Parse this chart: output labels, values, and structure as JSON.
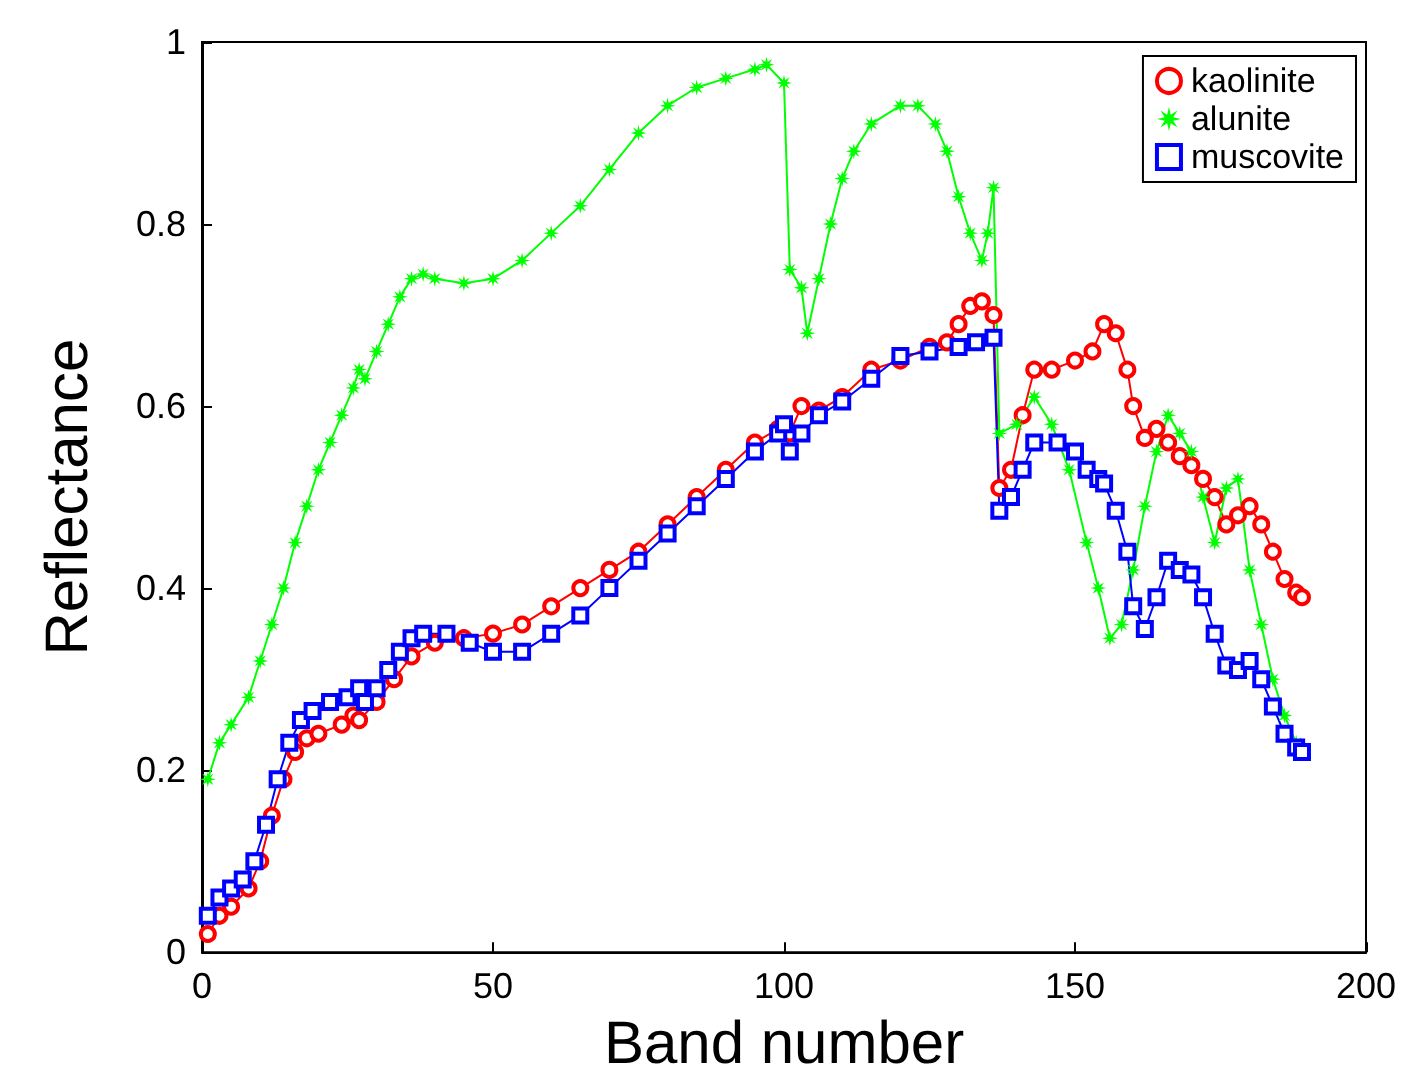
{
  "chart_data": {
    "type": "line",
    "xlabel": "Band number",
    "ylabel": "Reflectance",
    "xlim": [
      0,
      200
    ],
    "xticks": [
      0,
      50,
      100,
      150,
      200
    ],
    "ylim": [
      0,
      1
    ],
    "yticks": [
      0,
      0.2,
      0.4,
      0.6,
      0.8,
      1
    ],
    "grid": false,
    "legend": "top right",
    "line_style": "solid",
    "series": [
      {
        "name": "kaolinite",
        "color": "#ff0000",
        "marker": "circle",
        "x": [
          1,
          3,
          5,
          8,
          10,
          12,
          14,
          16,
          18,
          20,
          24,
          26,
          27,
          30,
          33,
          36,
          40,
          45,
          50,
          55,
          60,
          65,
          70,
          75,
          80,
          85,
          90,
          95,
          99,
          101,
          103,
          106,
          110,
          115,
          120,
          125,
          128,
          130,
          132,
          134,
          136,
          137,
          139,
          141,
          143,
          146,
          150,
          153,
          155,
          157,
          159,
          160,
          162,
          164,
          166,
          168,
          170,
          172,
          174,
          176,
          178,
          180,
          182,
          184,
          186,
          188,
          189
        ],
        "values": [
          0.02,
          0.04,
          0.05,
          0.07,
          0.1,
          0.15,
          0.19,
          0.22,
          0.235,
          0.24,
          0.25,
          0.26,
          0.255,
          0.275,
          0.3,
          0.325,
          0.34,
          0.345,
          0.35,
          0.36,
          0.38,
          0.4,
          0.42,
          0.44,
          0.47,
          0.5,
          0.53,
          0.56,
          0.575,
          0.57,
          0.6,
          0.595,
          0.61,
          0.64,
          0.65,
          0.665,
          0.67,
          0.69,
          0.71,
          0.715,
          0.7,
          0.51,
          0.53,
          0.59,
          0.64,
          0.64,
          0.65,
          0.66,
          0.69,
          0.68,
          0.64,
          0.6,
          0.565,
          0.575,
          0.56,
          0.545,
          0.535,
          0.52,
          0.5,
          0.47,
          0.48,
          0.49,
          0.47,
          0.44,
          0.41,
          0.395,
          0.39
        ]
      },
      {
        "name": "alunite",
        "color": "#00ff00",
        "marker": "star",
        "x": [
          1,
          3,
          5,
          8,
          10,
          12,
          14,
          16,
          18,
          20,
          22,
          24,
          26,
          27,
          28,
          30,
          32,
          34,
          36,
          38,
          40,
          45,
          50,
          55,
          60,
          65,
          70,
          75,
          80,
          85,
          90,
          95,
          97,
          100,
          101,
          103,
          104,
          106,
          108,
          110,
          112,
          115,
          120,
          123,
          126,
          128,
          130,
          132,
          134,
          135,
          136,
          137,
          140,
          143,
          146,
          149,
          152,
          154,
          156,
          158,
          160,
          162,
          164,
          166,
          168,
          170,
          172,
          174,
          176,
          178,
          180,
          182,
          184,
          186,
          188
        ],
        "values": [
          0.19,
          0.23,
          0.25,
          0.28,
          0.32,
          0.36,
          0.4,
          0.45,
          0.49,
          0.53,
          0.56,
          0.59,
          0.62,
          0.64,
          0.63,
          0.66,
          0.69,
          0.72,
          0.74,
          0.745,
          0.74,
          0.735,
          0.74,
          0.76,
          0.79,
          0.82,
          0.86,
          0.9,
          0.93,
          0.95,
          0.96,
          0.97,
          0.975,
          0.955,
          0.75,
          0.73,
          0.68,
          0.74,
          0.8,
          0.85,
          0.88,
          0.91,
          0.93,
          0.93,
          0.91,
          0.88,
          0.83,
          0.79,
          0.76,
          0.79,
          0.84,
          0.57,
          0.58,
          0.61,
          0.58,
          0.53,
          0.45,
          0.4,
          0.345,
          0.36,
          0.42,
          0.49,
          0.55,
          0.59,
          0.57,
          0.55,
          0.5,
          0.45,
          0.51,
          0.52,
          0.42,
          0.36,
          0.3,
          0.26,
          0.23
        ]
      },
      {
        "name": "muscovite",
        "color": "#0000ff",
        "marker": "square",
        "x": [
          1,
          3,
          5,
          7,
          9,
          11,
          13,
          15,
          17,
          19,
          22,
          25,
          27,
          28,
          30,
          32,
          34,
          36,
          38,
          42,
          46,
          50,
          55,
          60,
          65,
          70,
          75,
          80,
          85,
          90,
          95,
          99,
          100,
          101,
          103,
          106,
          110,
          115,
          120,
          125,
          130,
          133,
          136,
          137,
          139,
          141,
          143,
          147,
          150,
          152,
          154,
          155,
          157,
          159,
          160,
          162,
          164,
          166,
          168,
          170,
          172,
          174,
          176,
          178,
          180,
          182,
          184,
          186,
          188,
          189
        ],
        "values": [
          0.04,
          0.06,
          0.07,
          0.08,
          0.1,
          0.14,
          0.19,
          0.23,
          0.255,
          0.265,
          0.275,
          0.28,
          0.29,
          0.275,
          0.29,
          0.31,
          0.33,
          0.345,
          0.35,
          0.35,
          0.34,
          0.33,
          0.33,
          0.35,
          0.37,
          0.4,
          0.43,
          0.46,
          0.49,
          0.52,
          0.55,
          0.57,
          0.58,
          0.55,
          0.57,
          0.59,
          0.605,
          0.63,
          0.655,
          0.66,
          0.665,
          0.67,
          0.675,
          0.485,
          0.5,
          0.53,
          0.56,
          0.56,
          0.55,
          0.53,
          0.52,
          0.515,
          0.485,
          0.44,
          0.38,
          0.355,
          0.39,
          0.43,
          0.42,
          0.415,
          0.39,
          0.35,
          0.315,
          0.31,
          0.32,
          0.3,
          0.27,
          0.24,
          0.225,
          0.22
        ]
      }
    ]
  }
}
